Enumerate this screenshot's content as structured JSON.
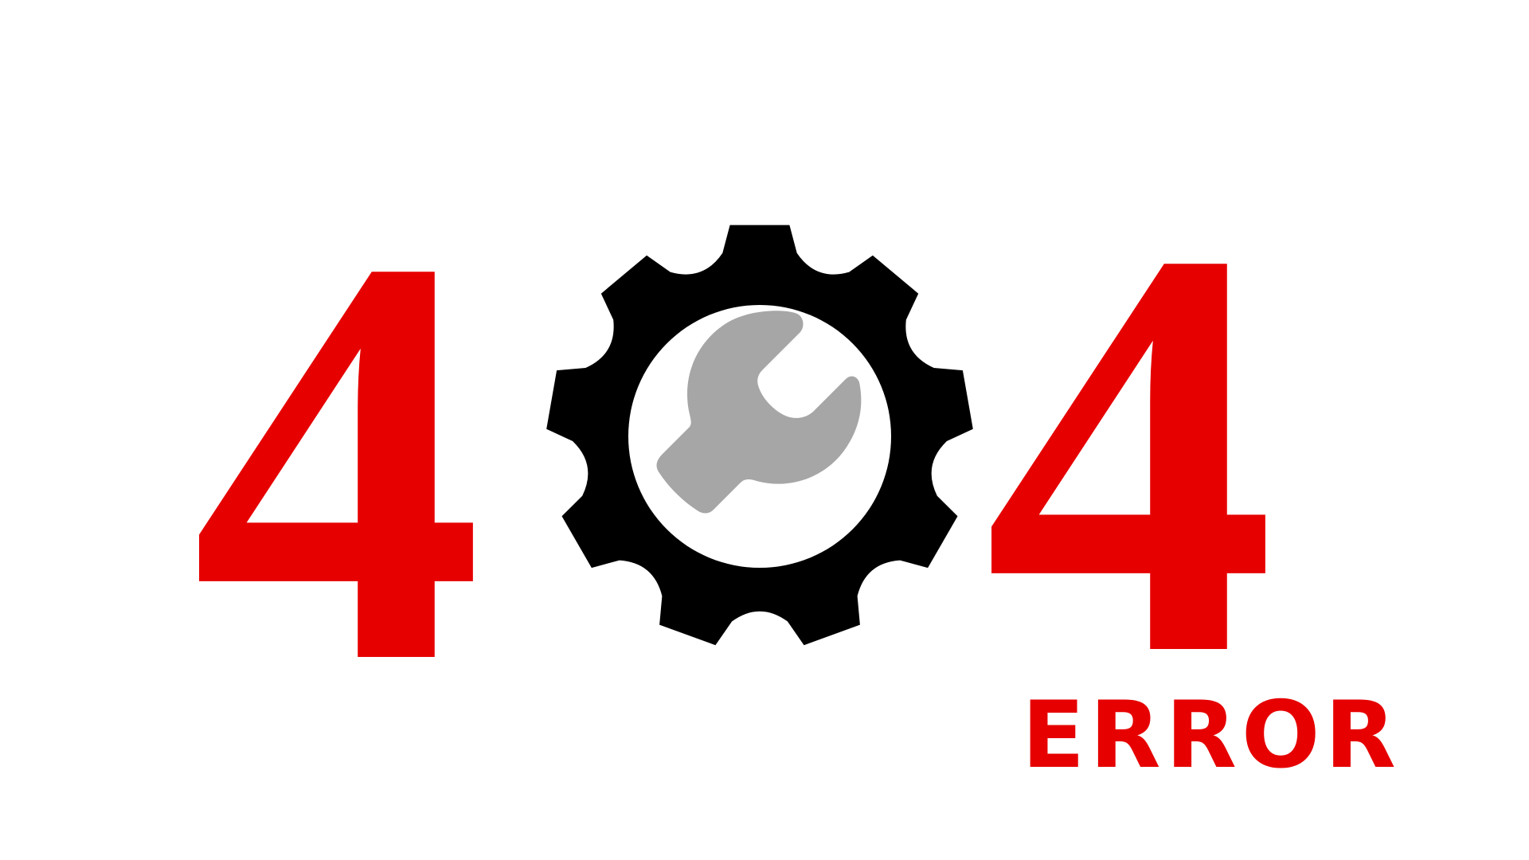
{
  "error_page": {
    "digit_left": "4",
    "digit_right": "4",
    "label": "ERROR",
    "icon": "gear-wrench-icon"
  },
  "colors": {
    "accent": "#e60000",
    "gear": "#000000",
    "wrench": "#a6a6a6",
    "background": "#ffffff"
  }
}
